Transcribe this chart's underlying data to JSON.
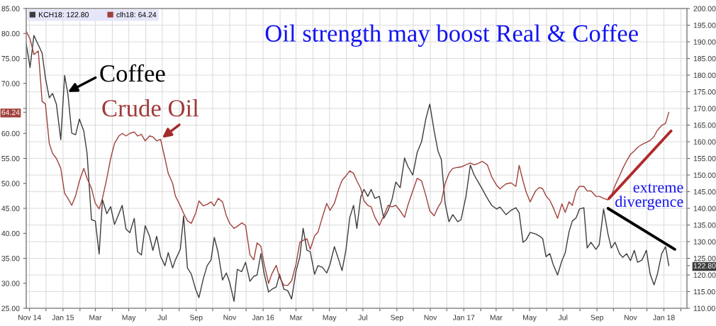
{
  "chart_data": {
    "type": "line",
    "title": "Oil strength may boost Real & Coffee",
    "x": [
      "2014-10-26",
      "2014-11-02",
      "2014-11-09",
      "2014-11-17",
      "2014-11-24",
      "2014-11-30",
      "2014-12-07",
      "2014-12-13",
      "2014-12-20",
      "2014-12-28",
      "2015-01-04",
      "2015-01-10",
      "2015-01-17",
      "2015-01-24",
      "2015-01-31",
      "2015-02-08",
      "2015-02-14",
      "2015-02-22",
      "2015-03-01",
      "2015-03-08",
      "2015-03-14",
      "2015-03-22",
      "2015-03-29",
      "2015-04-05",
      "2015-04-13",
      "2015-04-19",
      "2015-04-26",
      "2015-05-03",
      "2015-05-11",
      "2015-05-17",
      "2015-05-24",
      "2015-05-31",
      "2015-06-08",
      "2015-06-14",
      "2015-06-21",
      "2015-06-28",
      "2015-07-06",
      "2015-07-12",
      "2015-07-20",
      "2015-07-25",
      "2015-08-03",
      "2015-08-09",
      "2015-08-16",
      "2015-08-23",
      "2015-08-31",
      "2015-09-06",
      "2015-09-14",
      "2015-09-21",
      "2015-09-28",
      "2015-10-04",
      "2015-10-11",
      "2015-10-19",
      "2015-10-26",
      "2015-11-01",
      "2015-11-09",
      "2015-11-15",
      "2015-11-23",
      "2015-11-30",
      "2015-12-08",
      "2015-12-15",
      "2015-12-21",
      "2015-12-28",
      "2016-01-03",
      "2016-01-11",
      "2016-01-17",
      "2016-01-25",
      "2016-01-31",
      "2016-02-08",
      "2016-02-15",
      "2016-02-22",
      "2016-03-01",
      "2016-03-08",
      "2016-03-14",
      "2016-03-21",
      "2016-03-27",
      "2016-04-04",
      "2016-04-10",
      "2016-04-18",
      "2016-04-26",
      "2016-05-02",
      "2016-05-10",
      "2016-05-18",
      "2016-05-24",
      "2016-05-31",
      "2016-06-07",
      "2016-06-14",
      "2016-06-20",
      "2016-06-27",
      "2016-07-03",
      "2016-07-10",
      "2016-07-16",
      "2016-07-23",
      "2016-07-31",
      "2016-08-08",
      "2016-08-16",
      "2016-08-23",
      "2016-08-30",
      "2016-09-07",
      "2016-09-15",
      "2016-09-21",
      "2016-09-30",
      "2016-10-08",
      "2016-10-16",
      "2016-10-24",
      "2016-10-31",
      "2016-11-08",
      "2016-11-15",
      "2016-11-21",
      "2016-11-28",
      "2016-12-05",
      "2016-12-12",
      "2016-12-21",
      "2016-12-27",
      "2017-01-05",
      "2017-01-13",
      "2017-01-20",
      "2017-01-27",
      "2017-02-04",
      "2017-02-13",
      "2017-02-21",
      "2017-03-02",
      "2017-03-08",
      "2017-03-19",
      "2017-03-28",
      "2017-04-06",
      "2017-04-12",
      "2017-04-19",
      "2017-04-25",
      "2017-05-02",
      "2017-05-12",
      "2017-05-19",
      "2017-05-25",
      "2017-05-31",
      "2017-06-07",
      "2017-06-13",
      "2017-06-21",
      "2017-06-29",
      "2017-07-05",
      "2017-07-12",
      "2017-07-18",
      "2017-07-25",
      "2017-07-31",
      "2017-08-08",
      "2017-08-14",
      "2017-08-21",
      "2017-08-30",
      "2017-09-05",
      "2017-09-13",
      "2017-09-21",
      "2017-09-27",
      "2017-10-04",
      "2017-10-12",
      "2017-10-18",
      "2017-10-25",
      "2017-11-01",
      "2017-11-08",
      "2017-11-14",
      "2017-11-22",
      "2017-11-30",
      "2017-12-07",
      "2017-12-14",
      "2017-12-20",
      "2017-12-28",
      "2018-01-04",
      "2018-01-10"
    ],
    "series": [
      {
        "name": "KCH18: 122.80",
        "color": "#3c3c3c",
        "axis": "y2",
        "values": [
          189.4,
          182.3,
          191.9,
          189.1,
          186.6,
          179.1,
          173.2,
          174.5,
          171.3,
          160.6,
          179.9,
          174.3,
          162.6,
          162.1,
          166.8,
          163.2,
          156.4,
          136.6,
          136.2,
          126.3,
          142.6,
          138.4,
          140.5,
          135.2,
          138.4,
          140.9,
          133.8,
          132.7,
          137.0,
          127.0,
          126.0,
          134.8,
          131.6,
          127.4,
          131.6,
          125.6,
          122.8,
          126.7,
          122.1,
          124.5,
          127.7,
          137.7,
          122.1,
          120.3,
          115.7,
          113.2,
          118.9,
          122.8,
          124.5,
          131.3,
          126.7,
          118.5,
          120.6,
          117.8,
          112.1,
          121.7,
          121.0,
          123.8,
          118.1,
          119.6,
          120.0,
          126.4,
          120.3,
          114.9,
          115.7,
          116.4,
          120.2,
          115.7,
          115.3,
          112.8,
          121.1,
          125.5,
          134.0,
          127.4,
          127.0,
          120.2,
          122.8,
          122.3,
          120.6,
          123.2,
          128.5,
          124.5,
          121.3,
          127.4,
          137.2,
          140.9,
          134.0,
          143.4,
          145.7,
          143.6,
          145.7,
          143.0,
          143.6,
          137.0,
          139.4,
          142.6,
          147.9,
          146.2,
          155.1,
          152.6,
          150.0,
          156.8,
          160.0,
          167.0,
          171.3,
          163.2,
          157.2,
          154.7,
          141.5,
          136.0,
          138.1,
          136.0,
          136.6,
          143.6,
          153.0,
          150.0,
          148.0,
          145.7,
          143.0,
          140.9,
          139.8,
          140.4,
          138.1,
          139.4,
          140.2,
          138.7,
          129.8,
          130.6,
          132.8,
          132.3,
          131.7,
          130.9,
          125.5,
          126.4,
          123.2,
          120.0,
          124.3,
          126.6,
          133.0,
          136.2,
          137.2,
          139.8,
          140.2,
          128.1,
          129.8,
          127.7,
          129.1,
          139.8,
          132.3,
          128.1,
          129.8,
          126.4,
          125.3,
          126.4,
          124.3,
          127.4,
          123.8,
          124.5,
          127.4,
          120.2,
          117.0,
          120.2,
          126.4,
          128.5,
          122.8
        ]
      },
      {
        "name": "clh18: 64.24",
        "color": "#a0413c",
        "values": [
          80.4,
          78.9,
          75.8,
          76.5,
          66.4,
          65.9,
          58.0,
          56.0,
          55.0,
          53.0,
          48.0,
          47.0,
          45.6,
          47.5,
          50.5,
          53.0,
          51.0,
          49.0,
          46.0,
          44.9,
          47.0,
          51.0,
          55.0,
          58.0,
          59.5,
          60.0,
          59.5,
          60.0,
          60.3,
          59.5,
          59.8,
          58.5,
          59.5,
          59.3,
          58.5,
          58.8,
          55.0,
          52.0,
          50.0,
          47.5,
          45.5,
          44.0,
          42.5,
          42.0,
          44.0,
          46.5,
          45.5,
          45.8,
          46.3,
          45.5,
          47.0,
          46.3,
          43.5,
          42.0,
          41.0,
          41.4,
          42.1,
          41.6,
          35.7,
          34.7,
          38.1,
          37.4,
          33.8,
          30.0,
          31.9,
          33.6,
          31.2,
          29.6,
          29.6,
          30.5,
          33.8,
          38.2,
          38.6,
          38.9,
          36.8,
          39.5,
          40.2,
          43.2,
          46.0,
          44.6,
          46.0,
          48.9,
          50.6,
          51.5,
          52.5,
          52.0,
          50.5,
          49.0,
          46.5,
          45.6,
          45.3,
          43.2,
          41.6,
          43.5,
          45.6,
          45.3,
          45.6,
          44.5,
          43.2,
          45.6,
          48.5,
          51.0,
          50.5,
          47.5,
          44.5,
          43.5,
          45.2,
          46.3,
          50.0,
          52.0,
          53.0,
          53.2,
          53.3,
          53.7,
          54.1,
          53.7,
          54.0,
          54.4,
          53.7,
          51.3,
          49.6,
          48.9,
          49.9,
          50.1,
          49.4,
          53.6,
          50.5,
          48.2,
          46.3,
          48.5,
          49.2,
          48.9,
          47.5,
          46.6,
          45.2,
          43.0,
          45.9,
          44.2,
          46.3,
          45.6,
          48.5,
          49.4,
          49.4,
          48.5,
          48.5,
          47.4,
          47.4,
          47.0,
          46.7,
          47.5,
          49.6,
          51.5,
          53.0,
          54.5,
          55.8,
          56.5,
          57.2,
          57.8,
          58.2,
          58.6,
          59.4,
          60.6,
          61.6,
          62.0,
          64.24
        ]
      },
      {
        "color": "#b02a2a",
        "x": [
          "2017-09-23",
          "2018-01-14"
        ],
        "values": [
          47.0,
          60.5
        ]
      },
      {
        "color": "#000000",
        "axis": "y2",
        "x": [
          "2017-09-21",
          "2018-01-21"
        ],
        "values": [
          140.0,
          127.7
        ]
      }
    ],
    "xlim": [
      "2014-10-26",
      "2018-02-12"
    ],
    "ylim": [
      25,
      85
    ],
    "y2lim": [
      110,
      200
    ],
    "xticks": [
      {
        "value": "2014-11-01",
        "label": "Nov 14"
      },
      {
        "value": "2014-12-01",
        "label": null
      },
      {
        "value": "2015-01-01",
        "label": "Jan 15"
      },
      {
        "value": "2015-02-01",
        "label": null
      },
      {
        "value": "2015-03-01",
        "label": "Mar"
      },
      {
        "value": "2015-04-01",
        "label": null
      },
      {
        "value": "2015-05-01",
        "label": "May"
      },
      {
        "value": "2015-06-01",
        "label": null
      },
      {
        "value": "2015-07-01",
        "label": "Jul"
      },
      {
        "value": "2015-08-01",
        "label": null
      },
      {
        "value": "2015-09-01",
        "label": "Sep"
      },
      {
        "value": "2015-10-01",
        "label": null
      },
      {
        "value": "2015-11-01",
        "label": "Nov"
      },
      {
        "value": "2015-12-01",
        "label": null
      },
      {
        "value": "2016-01-01",
        "label": "Jan 16"
      },
      {
        "value": "2016-02-01",
        "label": null
      },
      {
        "value": "2016-03-01",
        "label": "Mar"
      },
      {
        "value": "2016-04-01",
        "label": null
      },
      {
        "value": "2016-05-01",
        "label": "May"
      },
      {
        "value": "2016-06-01",
        "label": null
      },
      {
        "value": "2016-07-01",
        "label": "Jul"
      },
      {
        "value": "2016-08-01",
        "label": null
      },
      {
        "value": "2016-09-01",
        "label": "Sep"
      },
      {
        "value": "2016-10-01",
        "label": null
      },
      {
        "value": "2016-11-01",
        "label": "Nov"
      },
      {
        "value": "2016-12-01",
        "label": null
      },
      {
        "value": "2017-01-01",
        "label": "Jan 17"
      },
      {
        "value": "2017-02-01",
        "label": null
      },
      {
        "value": "2017-03-01",
        "label": "Mar"
      },
      {
        "value": "2017-04-01",
        "label": null
      },
      {
        "value": "2017-05-01",
        "label": "May"
      },
      {
        "value": "2017-06-01",
        "label": null
      },
      {
        "value": "2017-07-01",
        "label": "Jul"
      },
      {
        "value": "2017-08-01",
        "label": null
      },
      {
        "value": "2017-09-01",
        "label": "Sep"
      },
      {
        "value": "2017-10-01",
        "label": null
      },
      {
        "value": "2017-11-01",
        "label": "Nov"
      },
      {
        "value": "2017-12-01",
        "label": null
      },
      {
        "value": "2018-01-01",
        "label": "Jan 18"
      },
      {
        "value": "2018-02-01",
        "label": null
      }
    ],
    "yticks": [
      {
        "value": 25,
        "label": "25.00"
      },
      {
        "value": 30,
        "label": "30.00"
      },
      {
        "value": 35,
        "label": "35.00"
      },
      {
        "value": 40,
        "label": "40.00"
      },
      {
        "value": 45,
        "label": "45.00"
      },
      {
        "value": 50,
        "label": "50.00"
      },
      {
        "value": 55,
        "label": "55.00"
      },
      {
        "value": 60,
        "label": "60.00"
      },
      {
        "value": 64.24,
        "label": "64.24"
      },
      {
        "value": 65,
        "label": null
      },
      {
        "value": 70,
        "label": "70.00"
      },
      {
        "value": 75,
        "label": "75.00"
      },
      {
        "value": 80,
        "label": "80.00"
      },
      {
        "value": 85,
        "label": "85.00"
      }
    ],
    "y2ticks": [
      {
        "value": 110,
        "label": "110.00"
      },
      {
        "value": 115,
        "label": "115.00"
      },
      {
        "value": 120,
        "label": "120.00"
      },
      {
        "value": 122.8,
        "label": "122.80"
      },
      {
        "value": 125,
        "label": "125.00"
      },
      {
        "value": 130,
        "label": "130.00"
      },
      {
        "value": 135,
        "label": "135.00"
      },
      {
        "value": 140,
        "label": "140.00"
      },
      {
        "value": 145,
        "label": "145.00"
      },
      {
        "value": 150,
        "label": "150.00"
      },
      {
        "value": 155,
        "label": "155.00"
      },
      {
        "value": 160,
        "label": "160.00"
      },
      {
        "value": 165,
        "label": "165.00"
      },
      {
        "value": 170,
        "label": "170.00"
      },
      {
        "value": 175,
        "label": "175.00"
      },
      {
        "value": 180,
        "label": "180.00"
      },
      {
        "value": 185,
        "label": "185.00"
      },
      {
        "value": 190,
        "label": "190.00"
      },
      {
        "value": 195,
        "label": "195.00"
      },
      {
        "value": 200,
        "label": "200.00"
      }
    ],
    "annotations": [
      {
        "text": "Coffee",
        "x": "2015-01-10",
        "y": 68.3
      },
      {
        "text": "Crude Oil",
        "x": "2015-07-01",
        "y": 59.1
      },
      "extreme\ndivergence"
    ],
    "grid": true,
    "legend": "top left"
  }
}
